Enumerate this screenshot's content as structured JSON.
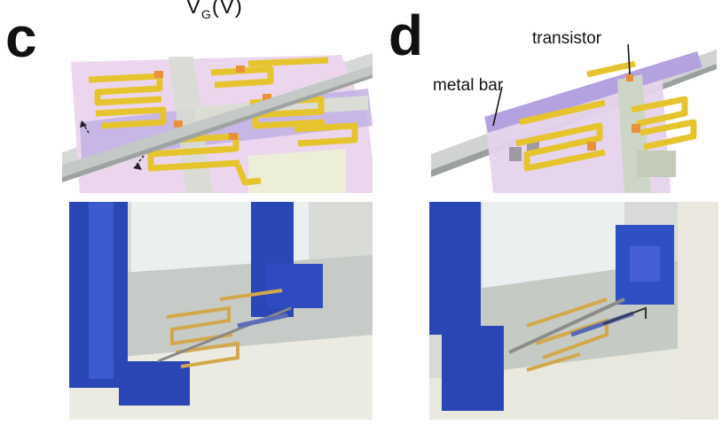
{
  "figure": {
    "top_axis": {
      "main": "V",
      "sub": "G",
      "unit": "(V)"
    },
    "panels": [
      {
        "letter": "c"
      },
      {
        "letter": "d",
        "labels": {
          "transistor": "transistor",
          "metal_bar": "metal bar"
        }
      }
    ]
  },
  "colors": {
    "film": "#e8d2ea",
    "film_purple": "#b8a4dc",
    "electrode": "#e8c531",
    "contact": "#e8923a",
    "channel": "#cfd7c8",
    "holder_blue": "#2a48b8",
    "holder_white": "#ece9df",
    "rod": "#c9cccb"
  }
}
